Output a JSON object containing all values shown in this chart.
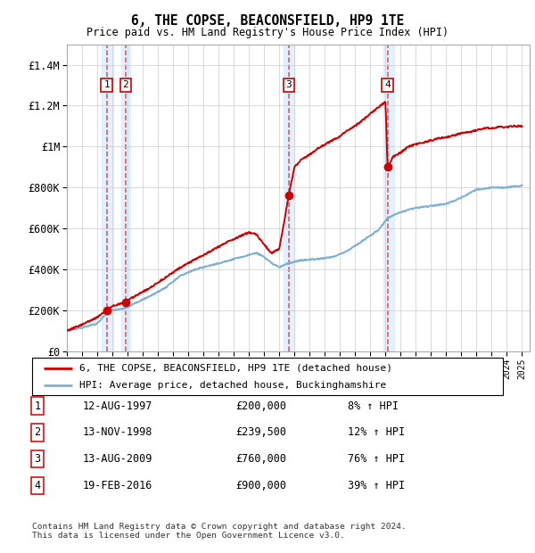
{
  "title": "6, THE COPSE, BEACONSFIELD, HP9 1TE",
  "subtitle": "Price paid vs. HM Land Registry's House Price Index (HPI)",
  "legend_line1": "6, THE COPSE, BEACONSFIELD, HP9 1TE (detached house)",
  "legend_line2": "HPI: Average price, detached house, Buckinghamshire",
  "footer": "Contains HM Land Registry data © Crown copyright and database right 2024.\nThis data is licensed under the Open Government Licence v3.0.",
  "transactions": [
    {
      "num": 1,
      "date": "12-AUG-1997",
      "price": 200000,
      "pct": "8% ↑ HPI",
      "year": 1997.62
    },
    {
      "num": 2,
      "date": "13-NOV-1998",
      "price": 239500,
      "pct": "12% ↑ HPI",
      "year": 1998.87
    },
    {
      "num": 3,
      "date": "13-AUG-2009",
      "price": 760000,
      "pct": "76% ↑ HPI",
      "year": 2009.62
    },
    {
      "num": 4,
      "date": "19-FEB-2016",
      "price": 900000,
      "pct": "39% ↑ HPI",
      "year": 2016.13
    }
  ],
  "hpi_color": "#7bafd4",
  "price_color": "#cc0000",
  "shade_color": "#ddeeff",
  "dashed_color": "#dd3333",
  "ylim": [
    0,
    1500000
  ],
  "xlim": [
    1995,
    2025.5
  ],
  "yticks": [
    0,
    200000,
    400000,
    600000,
    800000,
    1000000,
    1200000,
    1400000
  ],
  "ylabels": [
    "£0",
    "£200K",
    "£400K",
    "£600K",
    "£800K",
    "£1M",
    "£1.2M",
    "£1.4M"
  ],
  "background_color": "#ffffff"
}
